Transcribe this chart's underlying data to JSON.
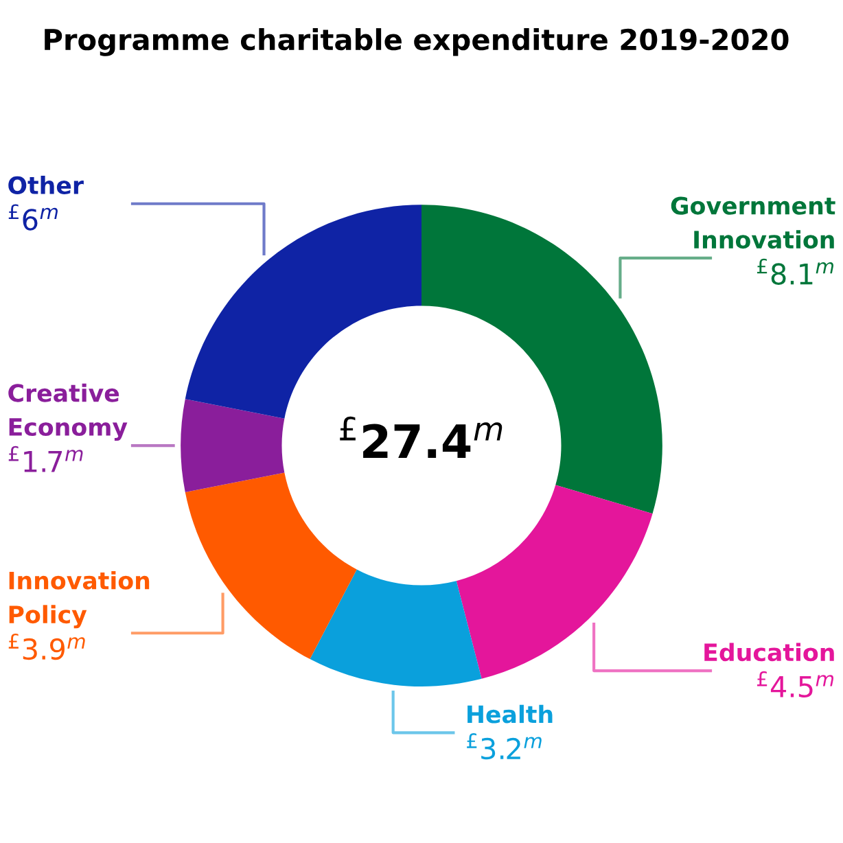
{
  "chart_data": {
    "type": "donut",
    "title": "Programme charitable expenditure 2019-2020",
    "categories": [
      "Government\nInnovation",
      "Education",
      "Health",
      "Innovation\nPolicy",
      "Creative\nEconomy",
      "Other"
    ],
    "values": [
      8.1,
      4.5,
      3.2,
      3.9,
      1.7,
      6
    ],
    "colors": [
      "#00763a",
      "#e4169b",
      "#0aa0dc",
      "#ff5a00",
      "#8a1e9b",
      "#0f23a5"
    ],
    "value_labels": [
      "$^{£}$8.1$^{m}$",
      "$^{£}$4.5$^{m}$",
      "$^{£}$3.2$^{m}$",
      "$^{£}$3.9$^{m}$",
      "$^{£}$1.7$^{m}$",
      "$^{£}$6$^{m}$"
    ],
    "annotations": [
      "$^{£}$27.4$^{m}$"
    ],
    "legend": false
  }
}
